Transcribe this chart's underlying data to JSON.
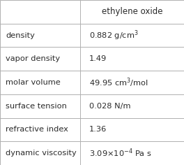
{
  "header_val": "ethylene oxide",
  "rows": [
    {
      "property": "density",
      "value": "0.882 g/cm$^{3}$"
    },
    {
      "property": "vapor density",
      "value": "1.49"
    },
    {
      "property": "molar volume",
      "value": "49.95 cm$^{3}$/mol"
    },
    {
      "property": "surface tension",
      "value": "0.028 N/m"
    },
    {
      "property": "refractive index",
      "value": "1.36"
    },
    {
      "property": "dynamic viscosity",
      "value": "3.09×10$^{-4}$ Pa s"
    }
  ],
  "bg_color": "#ffffff",
  "border_color": "#b0b0b0",
  "text_color": "#2b2b2b",
  "header_font_size": 8.5,
  "cell_font_size": 8.2,
  "col_split": 0.435,
  "figwidth": 2.64,
  "figheight": 2.36,
  "dpi": 100
}
